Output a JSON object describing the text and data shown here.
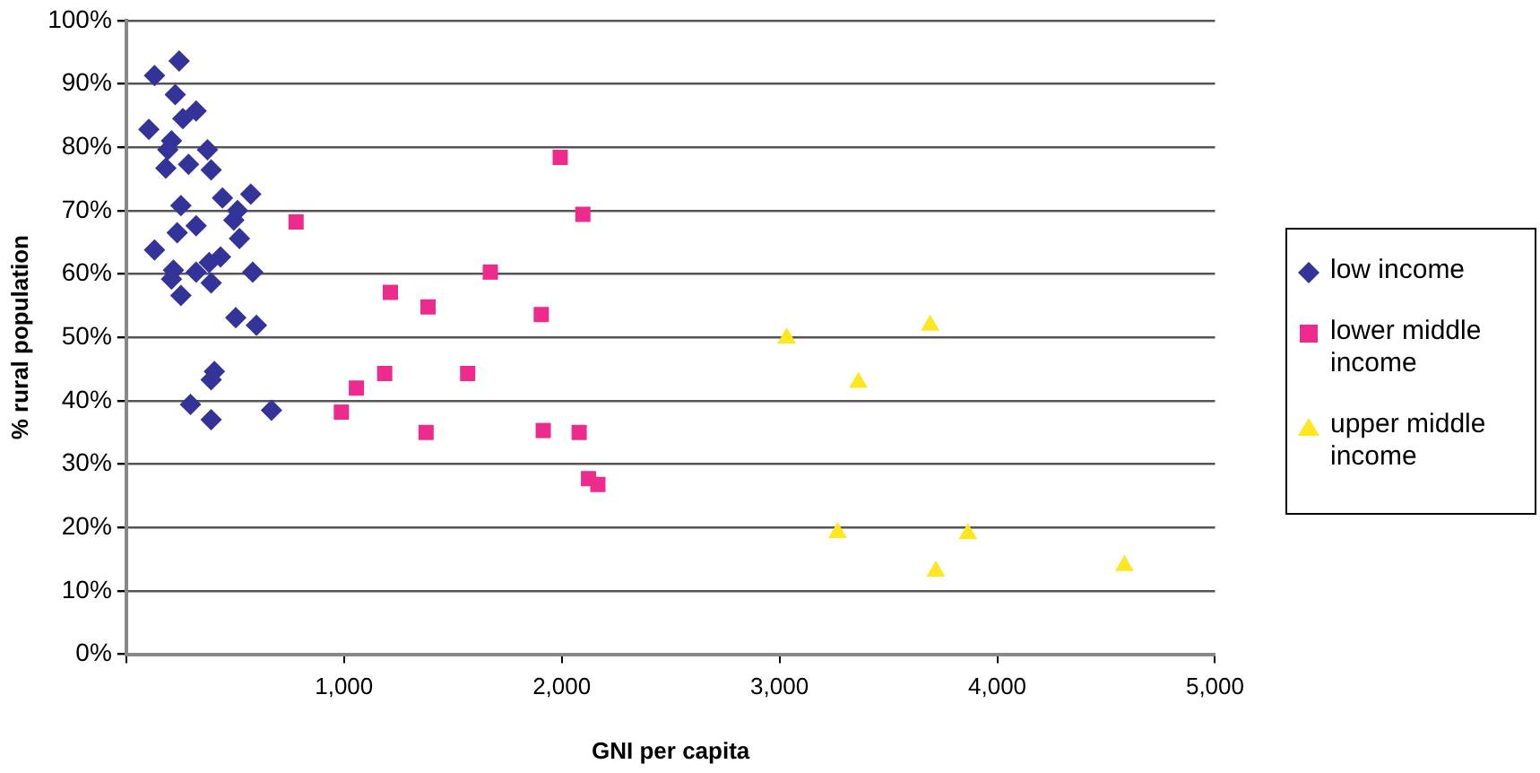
{
  "chart_data": {
    "type": "scatter",
    "xlabel": "GNI per capita",
    "ylabel": "% rural population",
    "xlim": [
      0,
      5000
    ],
    "xticks": [
      {
        "value": 0,
        "label": null
      },
      {
        "value": 1000,
        "label": "1,000"
      },
      {
        "value": 2000,
        "label": "2,000"
      },
      {
        "value": 3000,
        "label": "3,000"
      },
      {
        "value": 4000,
        "label": "4,000"
      },
      {
        "value": 5000,
        "label": "5,000"
      }
    ],
    "ylim": [
      0,
      100
    ],
    "yticks": [
      {
        "value": 0,
        "label": "0%"
      },
      {
        "value": 10,
        "label": "10%"
      },
      {
        "value": 20,
        "label": "20%"
      },
      {
        "value": 30,
        "label": "30%"
      },
      {
        "value": 40,
        "label": "40%"
      },
      {
        "value": 50,
        "label": "50%"
      },
      {
        "value": 60,
        "label": "60%"
      },
      {
        "value": 70,
        "label": "70%"
      },
      {
        "value": 80,
        "label": "80%"
      },
      {
        "value": 90,
        "label": "90%"
      },
      {
        "value": 100,
        "label": "100%"
      }
    ],
    "grid": "y",
    "legend": "right",
    "series": [
      {
        "name": "low income",
        "color": "#333399",
        "marker": "diamond",
        "x": [
          130,
          243,
          225,
          104,
          321,
          260,
          208,
          191,
          373,
          182,
          286,
          390,
          572,
          442,
          251,
          511,
          130,
          234,
          321,
          494,
          520,
          433,
          381,
          217,
          321,
          208,
          390,
          251,
          581,
          503,
          598,
          405,
          390,
          295,
          390,
          667
        ],
        "values": [
          91.3,
          93.6,
          88.3,
          82.8,
          85.7,
          84.5,
          81.0,
          79.6,
          79.6,
          76.7,
          77.3,
          76.4,
          72.6,
          72.0,
          70.8,
          70.0,
          63.8,
          66.5,
          67.6,
          68.5,
          65.6,
          62.7,
          61.8,
          60.6,
          60.3,
          59.2,
          58.6,
          56.6,
          60.3,
          53.1,
          51.9,
          44.6,
          43.3,
          39.4,
          37.0,
          38.5
        ]
      },
      {
        "name": "lower middle income",
        "color": "#ec2b8c",
        "marker": "square",
        "x": [
          780,
          1993,
          2097,
          1213,
          1386,
          1672,
          1906,
          1187,
          1568,
          1057,
          988,
          1377,
          1915,
          2080,
          2123,
          2166
        ],
        "values": [
          68.2,
          78.4,
          69.4,
          57.1,
          54.8,
          60.3,
          53.6,
          44.3,
          44.3,
          42.0,
          38.2,
          35.0,
          35.3,
          35.0,
          27.7,
          26.8
        ]
      },
      {
        "name": "upper middle income",
        "color": "#ffe61e",
        "marker": "triangle",
        "x": [
          3033,
          3692,
          3362,
          3267,
          3865,
          3718,
          4584
        ],
        "values": [
          49.9,
          51.9,
          42.9,
          19.2,
          19.0,
          13.1,
          14.0
        ]
      }
    ]
  }
}
